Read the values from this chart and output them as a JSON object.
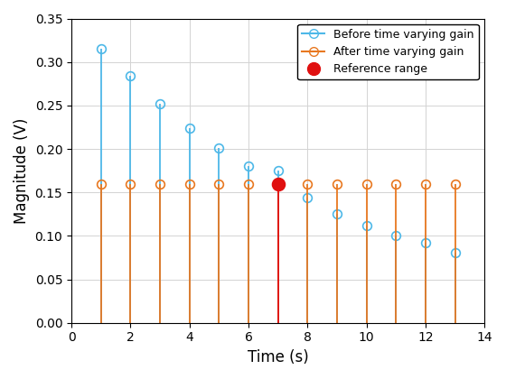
{
  "before_x": [
    1,
    2,
    3,
    4,
    5,
    6,
    7,
    8,
    9,
    10,
    11,
    12,
    13
  ],
  "before_y": [
    0.315,
    0.284,
    0.252,
    0.224,
    0.201,
    0.18,
    0.175,
    0.144,
    0.125,
    0.112,
    0.1,
    0.092,
    0.081
  ],
  "after_x": [
    1,
    2,
    3,
    4,
    5,
    6,
    7,
    8,
    9,
    10,
    11,
    12,
    13
  ],
  "after_y": [
    0.16,
    0.16,
    0.16,
    0.16,
    0.16,
    0.16,
    0.16,
    0.16,
    0.16,
    0.16,
    0.16,
    0.16,
    0.16
  ],
  "ref_x": [
    7
  ],
  "ref_y": [
    0.16
  ],
  "before_color": "#4db8e8",
  "after_color": "#e87820",
  "ref_color": "#e01010",
  "xlabel": "Time (s)",
  "ylabel": "Magnitude (V)",
  "xlim": [
    0,
    14
  ],
  "ylim": [
    0,
    0.35
  ],
  "xticks": [
    0,
    2,
    4,
    6,
    8,
    10,
    12,
    14
  ],
  "yticks": [
    0,
    0.05,
    0.1,
    0.15,
    0.2,
    0.25,
    0.3,
    0.35
  ],
  "legend_before": "Before time varying gain",
  "legend_after": "After time varying gain",
  "legend_ref": "Reference range",
  "background_color": "#ffffff"
}
